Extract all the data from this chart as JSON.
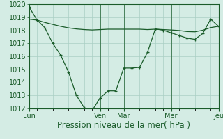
{
  "background_color": "#d4ece4",
  "plot_bg_color": "#d4ece4",
  "grid_color": "#aacfc4",
  "line_color": "#1a5c2a",
  "marker_color": "#1a5c2a",
  "xlabel": "Pression niveau de la mer( hPa )",
  "ylim": [
    1012,
    1020
  ],
  "yticks": [
    1012,
    1013,
    1014,
    1015,
    1016,
    1017,
    1018,
    1019,
    1020
  ],
  "day_labels": [
    "Lun",
    "Ven",
    "Mar",
    "Mer",
    "Jeu"
  ],
  "day_positions": [
    0,
    9,
    12,
    18,
    24
  ],
  "n_points": 25,
  "series1_x": [
    0,
    1,
    2,
    3,
    4,
    5,
    6,
    7,
    8,
    9,
    10,
    11,
    12,
    13,
    14,
    15,
    16,
    17,
    18,
    19,
    20,
    21,
    22,
    23,
    24
  ],
  "series1_y": [
    1019.8,
    1018.8,
    1018.2,
    1017.0,
    1016.1,
    1014.8,
    1013.0,
    1012.05,
    1011.85,
    1012.8,
    1013.35,
    1013.35,
    1015.1,
    1015.1,
    1015.15,
    1016.3,
    1018.1,
    1018.0,
    1017.8,
    1017.6,
    1017.4,
    1017.3,
    1017.75,
    1018.85,
    1018.3
  ],
  "series2_x": [
    0,
    1,
    2,
    3,
    4,
    5,
    6,
    7,
    8,
    9,
    10,
    11,
    12,
    13,
    14,
    15,
    16,
    17,
    18,
    19,
    20,
    21,
    22,
    23,
    24
  ],
  "series2_y": [
    1018.85,
    1018.78,
    1018.6,
    1018.45,
    1018.3,
    1018.18,
    1018.1,
    1018.05,
    1018.02,
    1018.05,
    1018.08,
    1018.08,
    1018.08,
    1018.08,
    1018.08,
    1018.05,
    1018.08,
    1018.05,
    1018.02,
    1017.98,
    1017.9,
    1017.88,
    1018.0,
    1018.2,
    1018.3
  ],
  "xlabel_fontsize": 8.5,
  "tick_fontsize": 7
}
